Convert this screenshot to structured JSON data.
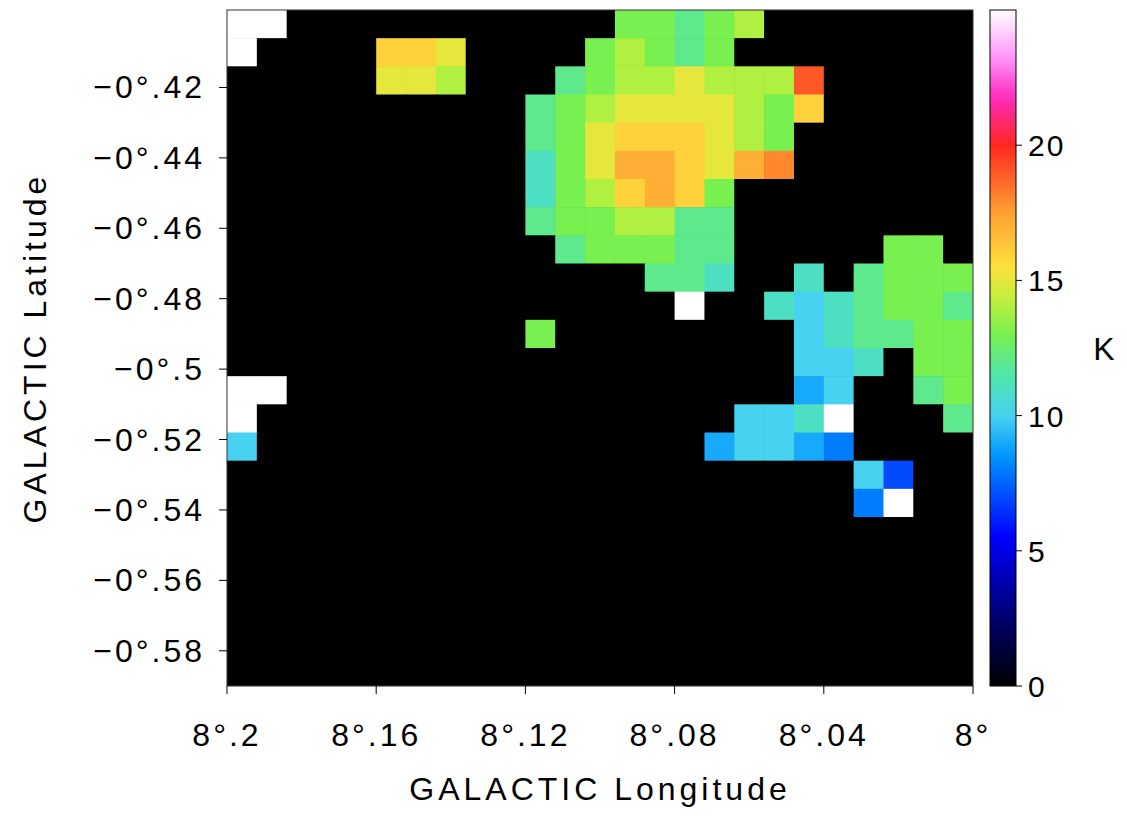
{
  "chart_data": {
    "type": "heatmap",
    "xlabel": "GALACTIC Longitude",
    "ylabel": "GALACTIC Latitude",
    "xlim": [
      8.2,
      8.0
    ],
    "ylim": [
      -0.59,
      -0.398
    ],
    "xticks": [
      {
        "value": 8.2,
        "label": "8°.2"
      },
      {
        "value": 8.16,
        "label": "8°.16"
      },
      {
        "value": 8.12,
        "label": "8°.12"
      },
      {
        "value": 8.08,
        "label": "8°.08"
      },
      {
        "value": 8.04,
        "label": "8°.04"
      },
      {
        "value": 8.0,
        "label": "8°"
      }
    ],
    "yticks": [
      {
        "value": -0.42,
        "label": "−0°.42"
      },
      {
        "value": -0.44,
        "label": "−0°.44"
      },
      {
        "value": -0.46,
        "label": "−0°.46"
      },
      {
        "value": -0.48,
        "label": "−0°.48"
      },
      {
        "value": -0.5,
        "label": "−0°.5"
      },
      {
        "value": -0.52,
        "label": "−0°.52"
      },
      {
        "value": -0.54,
        "label": "−0°.54"
      },
      {
        "value": -0.56,
        "label": "−0°.56"
      },
      {
        "value": -0.58,
        "label": "−0°.58"
      }
    ],
    "cells": [
      [
        25,
        25,
        0,
        0,
        0,
        0,
        0,
        0,
        0,
        0,
        0,
        0,
        0,
        13,
        13,
        12,
        13,
        14,
        0,
        0,
        0,
        0,
        0,
        0,
        0
      ],
      [
        25,
        0,
        0,
        0,
        0,
        16,
        16,
        15,
        0,
        0,
        0,
        0,
        13,
        14,
        13,
        12,
        13,
        0,
        0,
        0,
        0,
        0,
        0,
        0,
        0
      ],
      [
        0,
        0,
        0,
        0,
        0,
        15,
        15,
        14,
        0,
        0,
        0,
        12,
        13,
        14,
        14,
        15,
        14,
        14,
        14,
        19,
        0,
        0,
        0,
        0,
        0
      ],
      [
        0,
        0,
        0,
        0,
        0,
        0,
        0,
        0,
        0,
        0,
        12,
        13,
        14,
        15,
        15,
        15,
        15,
        14,
        13,
        16,
        0,
        0,
        0,
        0,
        0
      ],
      [
        0,
        0,
        0,
        0,
        0,
        0,
        0,
        0,
        0,
        0,
        12,
        13,
        15,
        16,
        16,
        16,
        15,
        14,
        13,
        0,
        0,
        0,
        0,
        0,
        0
      ],
      [
        0,
        0,
        0,
        0,
        0,
        0,
        0,
        0,
        0,
        0,
        11,
        13,
        15,
        17,
        17,
        16,
        15,
        17,
        18,
        0,
        0,
        0,
        0,
        0,
        0
      ],
      [
        0,
        0,
        0,
        0,
        0,
        0,
        0,
        0,
        0,
        0,
        11,
        13,
        14,
        16,
        17,
        16,
        13,
        0,
        0,
        0,
        0,
        0,
        0,
        0,
        0
      ],
      [
        0,
        0,
        0,
        0,
        0,
        0,
        0,
        0,
        0,
        0,
        12,
        13,
        13,
        14,
        14,
        12,
        12,
        0,
        0,
        0,
        0,
        0,
        0,
        0,
        0
      ],
      [
        0,
        0,
        0,
        0,
        0,
        0,
        0,
        0,
        0,
        0,
        0,
        12,
        13,
        13,
        13,
        12,
        12,
        0,
        0,
        0,
        0,
        0,
        13,
        13,
        0
      ],
      [
        0,
        0,
        0,
        0,
        0,
        0,
        0,
        0,
        0,
        0,
        0,
        0,
        0,
        0,
        12,
        12,
        11,
        0,
        0,
        11,
        0,
        12,
        13,
        13,
        13
      ],
      [
        0,
        0,
        0,
        0,
        0,
        0,
        0,
        0,
        0,
        0,
        0,
        0,
        0,
        0,
        0,
        25,
        0,
        0,
        11,
        10,
        11,
        12,
        13,
        13,
        12
      ],
      [
        0,
        0,
        0,
        0,
        0,
        0,
        0,
        0,
        0,
        0,
        13,
        0,
        0,
        0,
        0,
        0,
        0,
        0,
        0,
        10,
        11,
        12,
        12,
        13,
        13
      ],
      [
        0,
        0,
        0,
        0,
        0,
        0,
        0,
        0,
        0,
        0,
        0,
        0,
        0,
        0,
        0,
        0,
        0,
        0,
        0,
        10,
        10,
        11,
        0,
        13,
        13
      ],
      [
        25,
        25,
        0,
        0,
        0,
        0,
        0,
        0,
        0,
        0,
        0,
        0,
        0,
        0,
        0,
        0,
        0,
        0,
        0,
        9,
        10,
        0,
        0,
        12,
        13
      ],
      [
        25,
        0,
        0,
        0,
        0,
        0,
        0,
        0,
        0,
        0,
        0,
        0,
        0,
        0,
        0,
        0,
        0,
        10,
        10,
        11,
        25,
        0,
        0,
        0,
        12
      ],
      [
        10,
        0,
        0,
        0,
        0,
        0,
        0,
        0,
        0,
        0,
        0,
        0,
        0,
        0,
        0,
        0,
        9,
        10,
        10,
        9,
        8,
        0,
        0,
        0,
        0
      ],
      [
        0,
        0,
        0,
        0,
        0,
        0,
        0,
        0,
        0,
        0,
        0,
        0,
        0,
        0,
        0,
        0,
        0,
        0,
        0,
        0,
        0,
        10,
        7,
        0,
        0
      ],
      [
        0,
        0,
        0,
        0,
        0,
        0,
        0,
        0,
        0,
        0,
        0,
        0,
        0,
        0,
        0,
        0,
        0,
        0,
        0,
        0,
        0,
        8,
        25,
        0,
        0
      ],
      [
        0,
        0,
        0,
        0,
        0,
        0,
        0,
        0,
        0,
        0,
        0,
        0,
        0,
        0,
        0,
        0,
        0,
        0,
        0,
        0,
        0,
        0,
        0,
        0,
        0
      ],
      [
        0,
        0,
        0,
        0,
        0,
        0,
        0,
        0,
        0,
        0,
        0,
        0,
        0,
        0,
        0,
        0,
        0,
        0,
        0,
        0,
        0,
        0,
        0,
        0,
        0
      ],
      [
        0,
        0,
        0,
        0,
        0,
        0,
        0,
        0,
        0,
        0,
        0,
        0,
        0,
        0,
        0,
        0,
        0,
        0,
        0,
        0,
        0,
        0,
        0,
        0,
        0
      ],
      [
        0,
        0,
        0,
        0,
        0,
        0,
        0,
        0,
        0,
        0,
        0,
        0,
        0,
        0,
        0,
        0,
        0,
        0,
        0,
        0,
        0,
        0,
        0,
        0,
        0
      ],
      [
        0,
        0,
        0,
        0,
        0,
        0,
        0,
        0,
        0,
        0,
        0,
        0,
        0,
        0,
        0,
        0,
        0,
        0,
        0,
        0,
        0,
        0,
        0,
        0,
        0
      ],
      [
        0,
        0,
        0,
        0,
        0,
        0,
        0,
        0,
        0,
        0,
        0,
        0,
        0,
        0,
        0,
        0,
        0,
        0,
        0,
        0,
        0,
        0,
        0,
        0,
        0
      ]
    ],
    "colorbar": {
      "label": "K",
      "range": [
        0,
        25
      ],
      "ticks": [
        0,
        5,
        10,
        15,
        20
      ]
    }
  }
}
